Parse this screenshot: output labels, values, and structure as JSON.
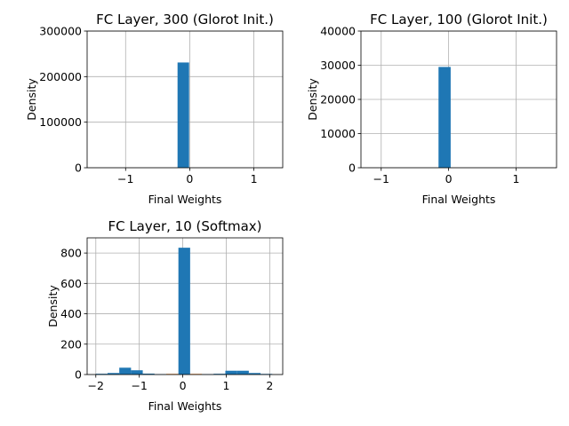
{
  "colors": {
    "bar": "#1f77b4",
    "secondary_bar": "#ff7f0e",
    "grid": "#b0b0b0",
    "axis": "#000000"
  },
  "chart_data": [
    {
      "type": "bar",
      "title": "FC Layer, 300 (Glorot Init.)",
      "xlabel": "Final Weights",
      "ylabel": "Density",
      "xlim": [
        -1.6,
        1.45
      ],
      "ylim": [
        0,
        300000
      ],
      "grid": true,
      "x_ticks": [
        -1,
        0,
        1
      ],
      "x_tick_labels": [
        "−1",
        "0",
        "1"
      ],
      "y_ticks": [
        0,
        100000,
        200000,
        300000
      ],
      "y_tick_labels": [
        "0",
        "100000",
        "200000",
        "300000"
      ],
      "series": [
        {
          "color": "#1f77b4",
          "bins": [
            {
              "x0": -0.19,
              "x1": -0.01,
              "value": 231000
            }
          ]
        }
      ]
    },
    {
      "type": "bar",
      "title": "FC Layer, 100 (Glorot Init.)",
      "xlabel": "Final Weights",
      "ylabel": "Density",
      "xlim": [
        -1.3,
        1.6
      ],
      "ylim": [
        0,
        40000
      ],
      "grid": true,
      "x_ticks": [
        -1,
        0,
        1
      ],
      "x_tick_labels": [
        "−1",
        "0",
        "1"
      ],
      "y_ticks": [
        0,
        10000,
        20000,
        30000,
        40000
      ],
      "y_tick_labels": [
        "0",
        "10000",
        "20000",
        "30000",
        "40000"
      ],
      "series": [
        {
          "color": "#1f77b4",
          "bins": [
            {
              "x0": -0.15,
              "x1": 0.03,
              "value": 29500
            }
          ]
        }
      ]
    },
    {
      "type": "bar",
      "title": "FC Layer, 10 (Softmax)",
      "xlabel": "Final Weights",
      "ylabel": "Density",
      "xlim": [
        -2.2,
        2.3
      ],
      "ylim": [
        0,
        900
      ],
      "grid": true,
      "x_ticks": [
        -2,
        -1,
        0,
        1,
        2
      ],
      "x_tick_labels": [
        "−2",
        "−1",
        "0",
        "1",
        "2"
      ],
      "y_ticks": [
        0,
        200,
        400,
        600,
        800
      ],
      "y_tick_labels": [
        "0",
        "200",
        "400",
        "600",
        "800"
      ],
      "series": [
        {
          "color": "#1f77b4",
          "bins": [
            {
              "x0": -2.0,
              "x1": -1.73,
              "value": 5
            },
            {
              "x0": -1.73,
              "x1": -1.46,
              "value": 10
            },
            {
              "x0": -1.46,
              "x1": -1.19,
              "value": 45
            },
            {
              "x0": -1.19,
              "x1": -0.92,
              "value": 28
            },
            {
              "x0": -0.92,
              "x1": -0.65,
              "value": 6
            },
            {
              "x0": -0.65,
              "x1": -0.38,
              "value": 2
            },
            {
              "x0": -0.1,
              "x1": 0.17,
              "value": 835
            },
            {
              "x0": 0.44,
              "x1": 0.71,
              "value": 2
            },
            {
              "x0": 0.71,
              "x1": 0.98,
              "value": 5
            },
            {
              "x0": 0.98,
              "x1": 1.25,
              "value": 25
            },
            {
              "x0": 1.25,
              "x1": 1.52,
              "value": 25
            },
            {
              "x0": 1.52,
              "x1": 1.79,
              "value": 10
            },
            {
              "x0": 1.79,
              "x1": 2.06,
              "value": 4
            }
          ]
        },
        {
          "color": "#ff7f0e",
          "bins": [
            {
              "x0": -0.38,
              "x1": -0.1,
              "value": 4
            },
            {
              "x0": 0.17,
              "x1": 0.44,
              "value": 4
            }
          ]
        }
      ]
    }
  ]
}
